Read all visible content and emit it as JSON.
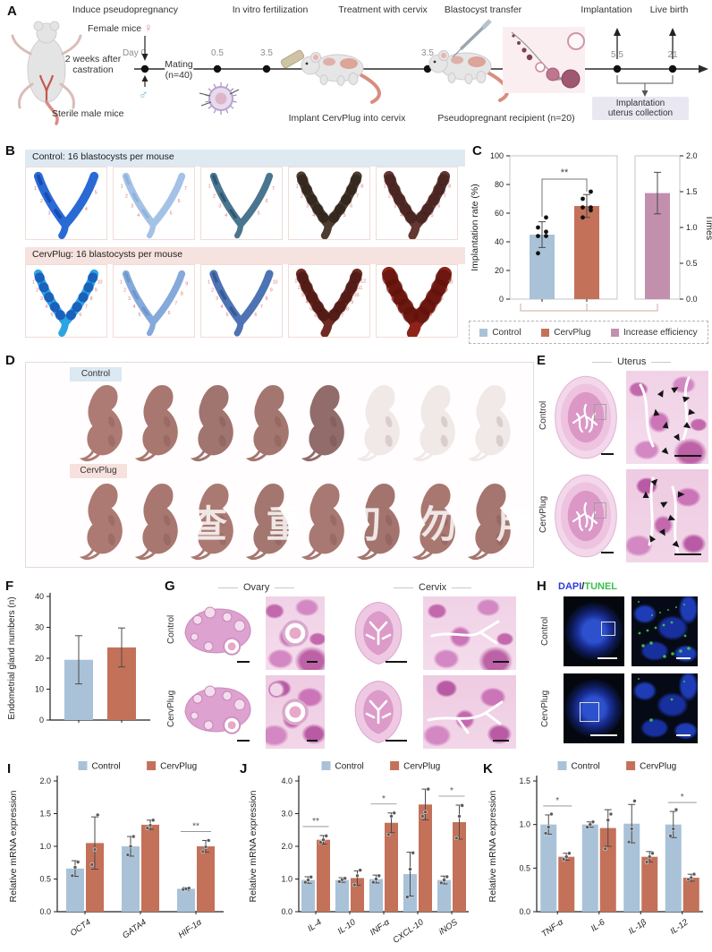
{
  "colors": {
    "control": "#a9c2d8",
    "cervplug": "#c4715a",
    "increase": "#c28fad",
    "dapi_text": "#3038d8",
    "tunel_text": "#3bbf4e",
    "control_strip_bg": "#dfe9f1",
    "cervplug_strip_bg": "#f6e2df",
    "control_chip_bg": "#dce8f2",
    "cervplug_chip_bg": "#f7e1de",
    "collection_box_bg": "#e9e7f2",
    "female_symbol_color": "#e87ea0",
    "male_symbol_color": "#6ab0d8"
  },
  "panelA": {
    "letter": "A",
    "stages": [
      "Induce pseudopregnancy",
      "In vitro fertilization",
      "Treatment with cervix",
      "Blastocyst transfer",
      "Implantation",
      "Live birth"
    ],
    "timeline_labels": [
      "Day 0",
      "0.5",
      "3.5",
      "3.5",
      "5.5",
      "21"
    ],
    "female_mice": "Female mice",
    "female_symbol": "♀",
    "male_symbol": "♂",
    "two_weeks": "2 weeks after\ncastration",
    "mating": "Mating\n(n=40)",
    "sterile": "Sterile male mice",
    "implant": "Implant CervPlug into cervix",
    "recipient": "Pseudopregnant recipient (n=20)",
    "collection": "Implantation\nuterus collection"
  },
  "panelB": {
    "letter": "B",
    "control_header": "Control: 16 blastocysts per mouse",
    "cervplug_header": "CervPlug: 16 blastocysts per mouse",
    "control_site_counts": [
      5,
      7,
      7,
      8,
      8
    ],
    "cervplug_site_counts": [
      10,
      9,
      10,
      12,
      10
    ]
  },
  "panelC": {
    "letter": "C"
  },
  "panelD": {
    "letter": "D",
    "control_label": "Control",
    "cervplug_label": "CervPlug",
    "control_pups_visible": 5,
    "control_pups_faded": 3,
    "cervplug_pups": 8,
    "watermark": "查 重 切 勿 用"
  },
  "panelE": {
    "letter": "E",
    "title": "Uterus",
    "rows": [
      "Control",
      "CervPlug"
    ]
  },
  "panelF": {
    "letter": "F"
  },
  "panelG": {
    "letter": "G",
    "col_titles": [
      "Ovary",
      "Cervix"
    ],
    "rows": [
      "Control",
      "CervPlug"
    ]
  },
  "panelH": {
    "letter": "H",
    "title_dapi": "DAPI",
    "title_slash": "/",
    "title_tunel": "TUNEL",
    "rows": [
      "Control",
      "CervPlug"
    ]
  },
  "panelI": {
    "letter": "I"
  },
  "panelJ": {
    "letter": "J"
  },
  "panelK": {
    "letter": "K"
  },
  "chart_data": [
    {
      "id": "C",
      "type": "bar",
      "ylabel": "Implantation rate (%)",
      "ylim": [
        0,
        100
      ],
      "yticks": [
        "0",
        "20",
        "40",
        "60",
        "80",
        "100"
      ],
      "bars": [
        {
          "label": "Control",
          "value": 45,
          "error": 9,
          "color_key": "control",
          "points": [
            32,
            44,
            44,
            47,
            50,
            57
          ]
        },
        {
          "label": "CervPlug",
          "value": 65,
          "error": 8,
          "color_key": "cervplug",
          "points": [
            57,
            62,
            64,
            64,
            70,
            75
          ]
        }
      ],
      "sig": "**",
      "right_axis": {
        "ylabel": "Times",
        "ylim": [
          0,
          2
        ],
        "yticks": [
          "0.0",
          "0.5",
          "1.0",
          "1.5",
          "2.0"
        ],
        "bars": [
          {
            "label": "Increase efficiency",
            "value": 1.48,
            "error": 0.29,
            "color_key": "increase"
          }
        ]
      },
      "legend": [
        "Control",
        "CervPlug",
        "Increase efficiency"
      ]
    },
    {
      "id": "F",
      "type": "bar",
      "ylabel": "Endometrial gland numbers (n)",
      "ylim": [
        0,
        40
      ],
      "yticks": [
        "0",
        "10",
        "20",
        "30",
        "40"
      ],
      "bars": [
        {
          "label": "Control",
          "value": 19.5,
          "error": 7.8,
          "color_key": "control"
        },
        {
          "label": "CervPlug",
          "value": 23.5,
          "error": 6.3,
          "color_key": "cervplug"
        }
      ]
    },
    {
      "id": "I",
      "type": "grouped_bar",
      "ylabel": "Relative mRNA expression",
      "ylim": [
        0,
        2
      ],
      "yticks": [
        "0.0",
        "0.5",
        "1.0",
        "1.5",
        "2.0"
      ],
      "categories": [
        "OCT4",
        "GATA4",
        "HIF-1α"
      ],
      "series": [
        {
          "name": "Control",
          "color_key": "control",
          "values": [
            0.66,
            1.0,
            0.35
          ],
          "errors": [
            0.12,
            0.15,
            0.02
          ],
          "points": [
            [
              0.55,
              0.68,
              0.76
            ],
            [
              0.87,
              1.0,
              1.15
            ],
            [
              0.34,
              0.35,
              0.36
            ]
          ]
        },
        {
          "name": "CervPlug",
          "color_key": "cervplug",
          "values": [
            1.05,
            1.33,
            1.0
          ],
          "errors": [
            0.4,
            0.07,
            0.09
          ],
          "points": [
            [
              0.72,
              0.95,
              1.48
            ],
            [
              1.28,
              1.32,
              1.4
            ],
            [
              0.92,
              0.99,
              1.09
            ]
          ]
        }
      ],
      "sig": [
        {
          "category": 2,
          "text": "**"
        }
      ]
    },
    {
      "id": "J",
      "type": "grouped_bar",
      "ylabel": "Relative mRNA expression",
      "ylim": [
        0,
        4
      ],
      "yticks": [
        "0.0",
        "1.0",
        "2.0",
        "3.0",
        "4.0"
      ],
      "categories": [
        "IL-4",
        "IL-10",
        "INF-α",
        "CXCL-10",
        "iNOS"
      ],
      "series": [
        {
          "name": "Control",
          "color_key": "control",
          "values": [
            0.97,
            0.97,
            1.0,
            1.15,
            0.97
          ],
          "errors": [
            0.1,
            0.07,
            0.12,
            0.67,
            0.12
          ],
          "points": [
            [
              0.9,
              0.97,
              1.06
            ],
            [
              0.92,
              0.98,
              1.02
            ],
            [
              0.9,
              1.0,
              1.1
            ],
            [
              0.45,
              1.3,
              1.8
            ],
            [
              0.88,
              0.97,
              1.07
            ]
          ]
        },
        {
          "name": "CervPlug",
          "color_key": "cervplug",
          "values": [
            2.2,
            1.03,
            2.72,
            3.28,
            2.74
          ],
          "errors": [
            0.13,
            0.22,
            0.3,
            0.47,
            0.52
          ],
          "points": [
            [
              2.12,
              2.2,
              2.32
            ],
            [
              0.82,
              1.1,
              1.27
            ],
            [
              2.36,
              2.92,
              3.02
            ],
            [
              2.92,
              3.05,
              3.75
            ],
            [
              2.25,
              2.92,
              3.25
            ]
          ]
        }
      ],
      "sig": [
        {
          "category": 0,
          "text": "**"
        },
        {
          "category": 2,
          "text": "*"
        },
        {
          "category": 4,
          "text": "*"
        }
      ]
    },
    {
      "id": "K",
      "type": "grouped_bar",
      "ylabel": "Relative mRNA expression",
      "ylim": [
        0,
        1.5
      ],
      "yticks": [
        "0.0",
        "0.5",
        "1.0",
        "1.5"
      ],
      "categories": [
        "TNF-α",
        "IL-6",
        "IL-1β",
        "IL-12"
      ],
      "series": [
        {
          "name": "Control",
          "color_key": "control",
          "values": [
            1.0,
            1.0,
            1.01,
            1.0
          ],
          "errors": [
            0.11,
            0.03,
            0.22,
            0.15
          ],
          "points": [
            [
              0.9,
              0.97,
              1.12
            ],
            [
              0.97,
              1.0,
              1.03
            ],
            [
              0.8,
              0.95,
              1.27
            ],
            [
              0.87,
              0.95,
              1.17
            ]
          ]
        },
        {
          "name": "CervPlug",
          "color_key": "cervplug",
          "values": [
            0.63,
            0.96,
            0.63,
            0.39
          ],
          "errors": [
            0.04,
            0.21,
            0.06,
            0.04
          ],
          "points": [
            [
              0.6,
              0.63,
              0.67
            ],
            [
              0.72,
              1.05,
              1.12
            ],
            [
              0.57,
              0.63,
              0.67
            ],
            [
              0.37,
              0.39,
              0.43
            ]
          ]
        }
      ],
      "sig": [
        {
          "category": 0,
          "text": "*"
        },
        {
          "category": 3,
          "text": "*"
        }
      ]
    }
  ]
}
